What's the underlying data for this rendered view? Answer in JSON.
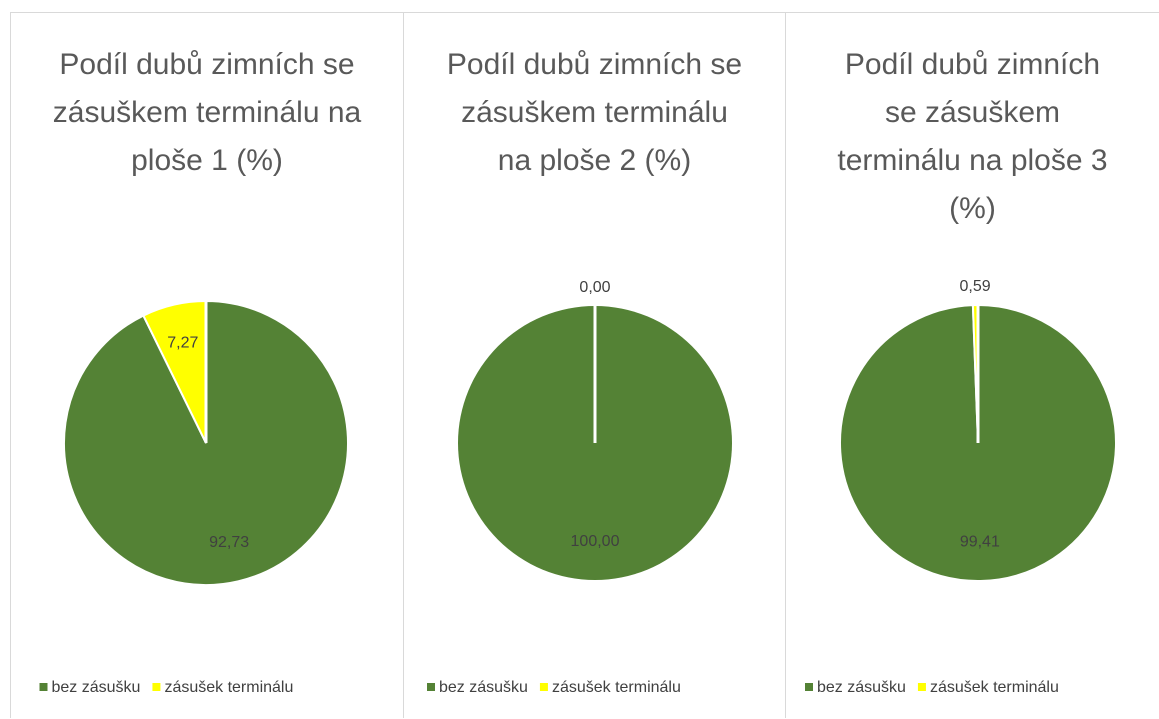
{
  "chart_data": [
    {
      "type": "pie",
      "title": "Podíl dubů zimních se zásuškem terminálu na ploše 1 (%)",
      "categories": [
        "bez zásušku",
        "zásušek terminálu"
      ],
      "values": [
        92.73,
        7.27
      ],
      "value_labels": [
        "92,73",
        "7,27"
      ],
      "colors": [
        "#548235",
        "#ffff00"
      ]
    },
    {
      "type": "pie",
      "title": "Podíl dubů zimních se zásuškem terminálu na ploše 2 (%)",
      "categories": [
        "bez zásušku",
        "zásušek terminálu"
      ],
      "values": [
        100,
        0
      ],
      "value_labels": [
        "100,00",
        "0,00"
      ],
      "colors": [
        "#548235",
        "#ffff00"
      ]
    },
    {
      "type": "pie",
      "title": "Podíl dubů zimních se zásuškem terminálu na ploše 3 (%)",
      "categories": [
        "bez zásušku",
        "zásušek terminálu"
      ],
      "values": [
        99.41,
        0.59
      ],
      "value_labels": [
        "99,41",
        "0,59"
      ],
      "colors": [
        "#548235",
        "#ffff00"
      ]
    }
  ]
}
